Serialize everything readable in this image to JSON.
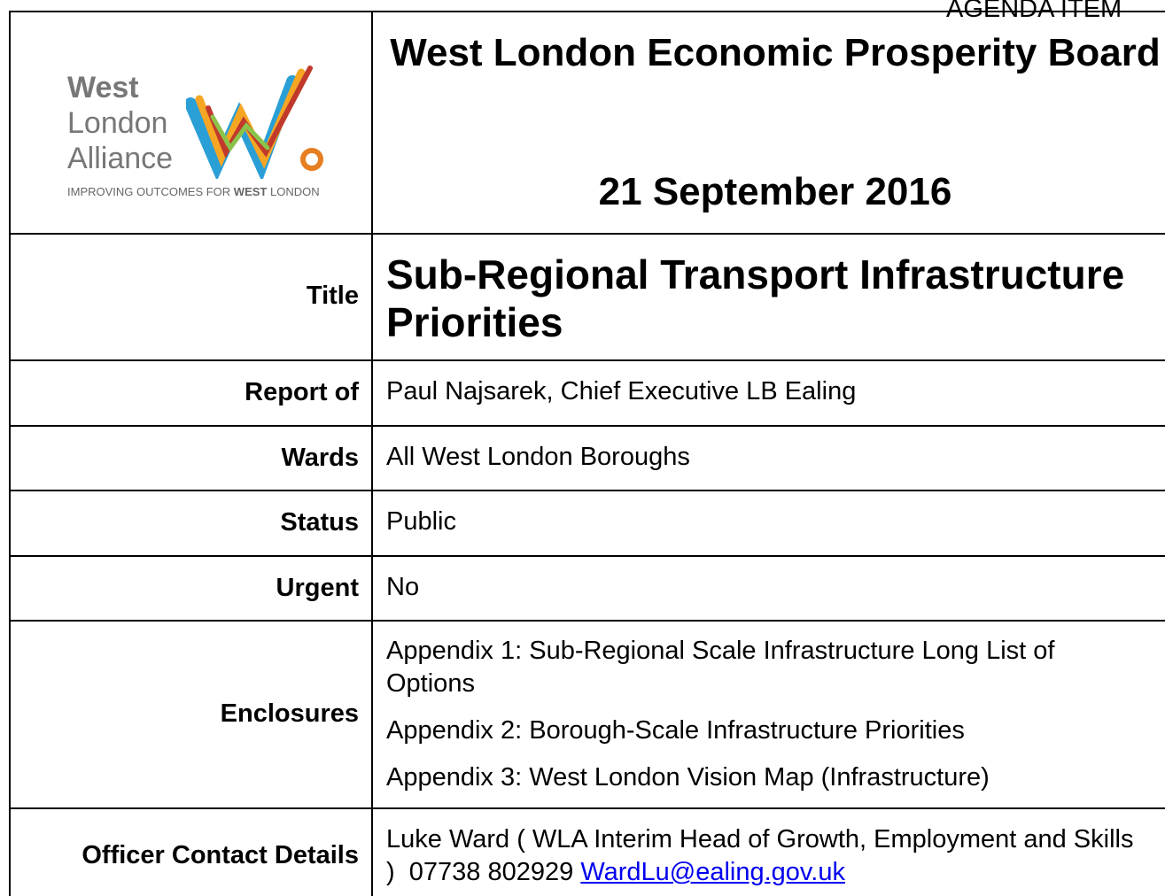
{
  "header": {
    "agenda_item": "AGENDA ITEM",
    "logo": {
      "line1": "West",
      "line2": "London",
      "line3": "Alliance",
      "tagline": [
        "IMPROVING OUTCOMES FOR ",
        "WEST",
        " LONDON"
      ]
    },
    "board": "West London Economic Prosperity Board",
    "date": "21 September 2016"
  },
  "rows": [
    {
      "label": "Title",
      "value": "Sub-Regional Transport Infrastructure Priorities"
    },
    {
      "label": "Report of",
      "value": "Paul Najsarek, Chief Executive LB Ealing"
    },
    {
      "label": "Wards",
      "value": "All West London Boroughs"
    },
    {
      "label": "Status",
      "value": "Public"
    },
    {
      "label": "Urgent",
      "value": "No"
    },
    {
      "label": "Enclosures",
      "items": [
        "Appendix 1: Sub-Regional Scale Infrastructure Long List of Options",
        "Appendix 2: Borough-Scale Infrastructure Priorities",
        "Appendix 3: West London Vision Map (Infrastructure)"
      ]
    },
    {
      "label": "Officer Contact Details",
      "value": "Luke Ward ( WLA Interim Head of Growth, Employment and Skills )  07738 802929 ",
      "email": "WardLu@ealing.gov.uk"
    }
  ]
}
